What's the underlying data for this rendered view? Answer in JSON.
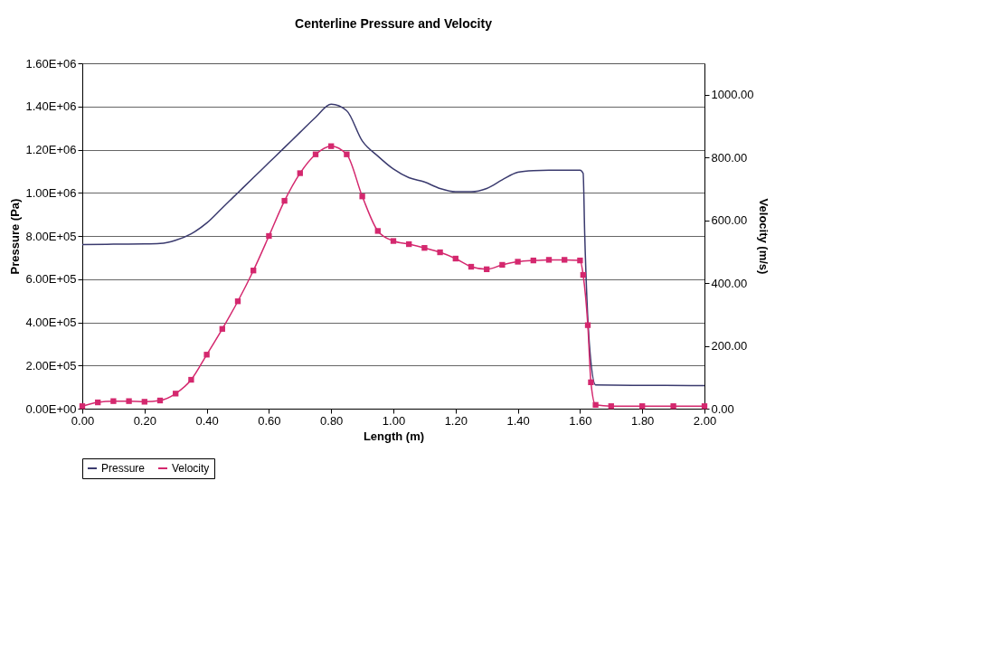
{
  "chart_data": {
    "type": "line",
    "title": "Centerline Pressure and Velocity",
    "xlabel": "Length (m)",
    "ylabel": "Pressure (Pa)",
    "y2label": "Velocity (m/s)",
    "xlim": [
      0,
      2
    ],
    "xticks": [
      {
        "value": 0,
        "label": "0.00"
      },
      {
        "value": 0.2,
        "label": "0.20"
      },
      {
        "value": 0.4,
        "label": "0.40"
      },
      {
        "value": 0.6,
        "label": "0.60"
      },
      {
        "value": 0.8,
        "label": "0.80"
      },
      {
        "value": 1.0,
        "label": "1.00"
      },
      {
        "value": 1.2,
        "label": "1.20"
      },
      {
        "value": 1.4,
        "label": "1.40"
      },
      {
        "value": 1.6,
        "label": "1.60"
      },
      {
        "value": 1.8,
        "label": "1.80"
      },
      {
        "value": 2.0,
        "label": "2.00"
      }
    ],
    "ylim": [
      0,
      1600000
    ],
    "yticks": [
      {
        "value": 0,
        "label": "0.00E+00"
      },
      {
        "value": 200000,
        "label": "2.00E+05"
      },
      {
        "value": 400000,
        "label": "4.00E+05"
      },
      {
        "value": 600000,
        "label": "6.00E+05"
      },
      {
        "value": 800000,
        "label": "8.00E+05"
      },
      {
        "value": 1000000,
        "label": "1.00E+06"
      },
      {
        "value": 1200000,
        "label": "1.20E+06"
      },
      {
        "value": 1400000,
        "label": "1.40E+06"
      },
      {
        "value": 1600000,
        "label": "1.60E+06"
      }
    ],
    "y2lim": [
      0,
      1100
    ],
    "y2ticks": [
      {
        "value": 0,
        "label": "0.00"
      },
      {
        "value": 200,
        "label": "200.00"
      },
      {
        "value": 400,
        "label": "400.00"
      },
      {
        "value": 600,
        "label": "600.00"
      },
      {
        "value": 800,
        "label": "800.00"
      },
      {
        "value": 1000,
        "label": "1000.00"
      }
    ],
    "grid": "y",
    "legend": "bottom",
    "line_style": "solid",
    "series": [
      {
        "name": "Pressure",
        "color": "#3a3a6e",
        "marker": "none",
        "x": [
          0,
          0.1,
          0.2,
          0.25,
          0.3,
          0.35,
          0.4,
          0.45,
          0.5,
          0.55,
          0.6,
          0.65,
          0.7,
          0.75,
          0.8,
          0.85,
          0.9,
          0.95,
          1.0,
          1.05,
          1.1,
          1.15,
          1.2,
          1.25,
          1.3,
          1.35,
          1.4,
          1.45,
          1.5,
          1.55,
          1.6,
          1.61,
          1.615,
          1.63,
          1.65,
          1.8,
          2.0
        ],
        "values": [
          760000,
          762000,
          763000,
          765000,
          780000,
          810000,
          860000,
          930000,
          1000000,
          1070000,
          1140000,
          1210000,
          1280000,
          1350000,
          1410000,
          1380000,
          1240000,
          1170000,
          1110000,
          1070000,
          1050000,
          1020000,
          1005000,
          1005000,
          1020000,
          1060000,
          1095000,
          1103000,
          1105000,
          1105000,
          1105000,
          1090000,
          810000,
          300000,
          110000,
          108000,
          107000
        ]
      },
      {
        "name": "Velocity",
        "color": "#d4286e",
        "marker": "square",
        "axis": "y2",
        "x": [
          0,
          0.05,
          0.1,
          0.15,
          0.2,
          0.25,
          0.3,
          0.35,
          0.4,
          0.45,
          0.5,
          0.55,
          0.6,
          0.65,
          0.7,
          0.75,
          0.8,
          0.85,
          0.9,
          0.95,
          1.0,
          1.05,
          1.1,
          1.15,
          1.2,
          1.25,
          1.3,
          1.35,
          1.4,
          1.45,
          1.5,
          1.55,
          1.6,
          1.61,
          1.625,
          1.635,
          1.65,
          1.7,
          1.8,
          1.9,
          2.0
        ],
        "values": [
          8,
          20,
          24,
          24,
          22,
          26,
          48,
          92,
          172,
          254,
          342,
          440,
          550,
          662,
          750,
          810,
          836,
          810,
          676,
          566,
          534,
          524,
          512,
          498,
          478,
          452,
          444,
          458,
          468,
          472,
          474,
          474,
          472,
          426,
          266,
          84,
          12,
          8,
          8,
          8,
          8
        ]
      }
    ]
  }
}
